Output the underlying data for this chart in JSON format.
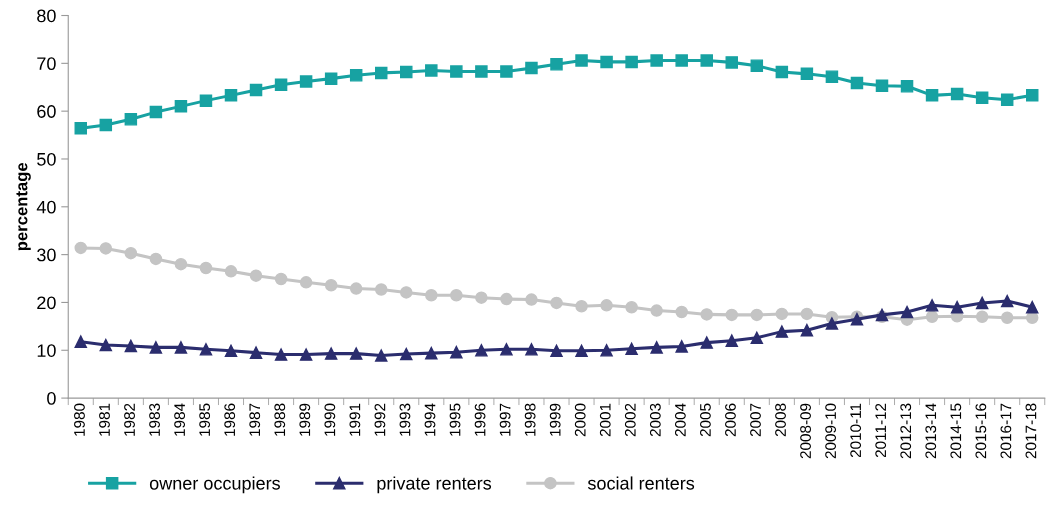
{
  "chart_data": {
    "type": "line",
    "ylabel": "percentage",
    "categories": [
      "1980",
      "1981",
      "1982",
      "1983",
      "1984",
      "1985",
      "1986",
      "1987",
      "1988",
      "1989",
      "1990",
      "1991",
      "1992",
      "1993",
      "1994",
      "1995",
      "1996",
      "1997",
      "1998",
      "1999",
      "2000",
      "2001",
      "2002",
      "2003",
      "2004",
      "2005",
      "2006",
      "2007",
      "2008",
      "2008-09",
      "2009-10",
      "2010-11",
      "2011-12",
      "2012-13",
      "2013-14",
      "2014-15",
      "2015-16",
      "2016-17",
      "2017-18"
    ],
    "series": [
      {
        "name": "owner occupiers",
        "color": "#17a2a2",
        "marker": "square",
        "values": [
          56.4,
          57.1,
          58.3,
          59.8,
          61.0,
          62.2,
          63.3,
          64.4,
          65.5,
          66.2,
          66.8,
          67.5,
          68.0,
          68.2,
          68.5,
          68.3,
          68.3,
          68.3,
          69.0,
          69.8,
          70.6,
          70.3,
          70.3,
          70.6,
          70.6,
          70.6,
          70.2,
          69.5,
          68.2,
          67.8,
          67.2,
          65.9,
          65.3,
          65.2,
          63.3,
          63.6,
          62.8,
          62.4,
          63.3
        ]
      },
      {
        "name": "private renters",
        "color": "#2b2d6e",
        "marker": "triangle",
        "values": [
          11.8,
          11.1,
          10.9,
          10.6,
          10.6,
          10.2,
          9.9,
          9.5,
          9.1,
          9.1,
          9.3,
          9.3,
          8.9,
          9.2,
          9.4,
          9.6,
          10.0,
          10.2,
          10.2,
          9.9,
          9.9,
          10.0,
          10.3,
          10.6,
          10.8,
          11.6,
          12.0,
          12.6,
          13.9,
          14.2,
          15.6,
          16.5,
          17.4,
          18.0,
          19.4,
          19.0,
          19.9,
          20.3,
          19.0
        ]
      },
      {
        "name": "social renters",
        "color": "#c4c4c4",
        "marker": "circle",
        "values": [
          31.4,
          31.3,
          30.3,
          29.1,
          28.0,
          27.2,
          26.5,
          25.6,
          24.9,
          24.2,
          23.6,
          22.9,
          22.7,
          22.1,
          21.5,
          21.5,
          21.0,
          20.7,
          20.6,
          19.9,
          19.2,
          19.4,
          19.0,
          18.3,
          18.0,
          17.5,
          17.4,
          17.4,
          17.6,
          17.6,
          16.9,
          17.0,
          17.0,
          16.4,
          17.0,
          17.1,
          17.0,
          16.8,
          16.8
        ]
      }
    ],
    "ylim": [
      0,
      80
    ],
    "yticks": [
      0,
      10,
      20,
      30,
      40,
      50,
      60,
      70,
      80
    ],
    "grid": false,
    "legend": "bottom",
    "line_style": "solid"
  }
}
